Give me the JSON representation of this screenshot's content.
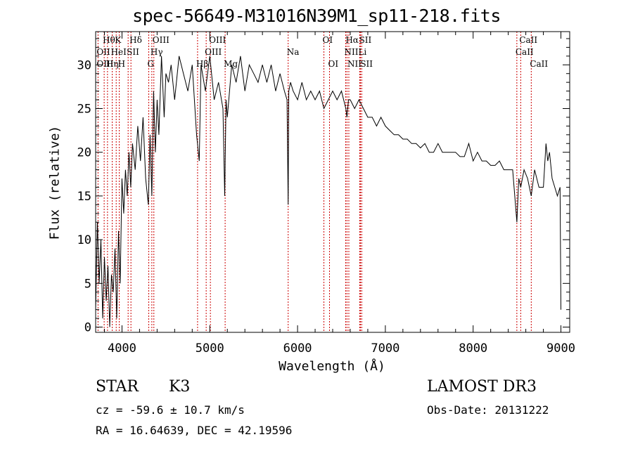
{
  "title": "spec-56649-M31016N39M1_sp11-218.fits",
  "info": {
    "object_class": "STAR",
    "subclass": "K3",
    "survey": "LAMOST DR3",
    "cz": "cz = -59.6 ± 10.7 km/s",
    "obs_date": "Obs-Date: 20131222",
    "coords": "RA =  16.64639, DEC =  42.19596"
  },
  "chart_data": {
    "type": "line",
    "title": "spec-56649-M31016N39M1_sp11-218.fits",
    "xlabel": "Wavelength (Å)",
    "ylabel": "Flux (relative)",
    "xlim": [
      3700,
      9100
    ],
    "ylim": [
      -0.6,
      33.8
    ],
    "xticks": [
      4000,
      5000,
      6000,
      7000,
      8000,
      9000
    ],
    "yticks": [
      0,
      5,
      10,
      15,
      20,
      25,
      30
    ],
    "series": [
      {
        "name": "flux",
        "x": [
          3700,
          3720,
          3740,
          3760,
          3780,
          3800,
          3820,
          3840,
          3860,
          3880,
          3900,
          3920,
          3940,
          3960,
          3980,
          4000,
          4020,
          4040,
          4060,
          4080,
          4100,
          4120,
          4150,
          4180,
          4210,
          4240,
          4270,
          4300,
          4320,
          4340,
          4360,
          4380,
          4400,
          4420,
          4450,
          4480,
          4500,
          4530,
          4560,
          4600,
          4650,
          4700,
          4750,
          4800,
          4850,
          4880,
          4900,
          4950,
          5000,
          5050,
          5100,
          5150,
          5170,
          5185,
          5200,
          5250,
          5300,
          5350,
          5400,
          5450,
          5500,
          5550,
          5600,
          5650,
          5700,
          5750,
          5800,
          5850,
          5880,
          5893,
          5900,
          5920,
          5950,
          6000,
          6050,
          6100,
          6150,
          6200,
          6250,
          6300,
          6350,
          6400,
          6450,
          6500,
          6550,
          6563,
          6580,
          6600,
          6650,
          6700,
          6750,
          6800,
          6850,
          6900,
          6950,
          7000,
          7050,
          7100,
          7150,
          7200,
          7250,
          7300,
          7350,
          7400,
          7450,
          7500,
          7550,
          7600,
          7650,
          7700,
          7750,
          7800,
          7850,
          7900,
          7950,
          8000,
          8050,
          8100,
          8150,
          8200,
          8250,
          8300,
          8350,
          8400,
          8450,
          8498,
          8520,
          8542,
          8580,
          8620,
          8662,
          8700,
          8750,
          8800,
          8830,
          8850,
          8870,
          8900,
          8930,
          8960,
          8990,
          9000
        ],
        "y": [
          2,
          12,
          5,
          10,
          1,
          8,
          3,
          7,
          0,
          6,
          4,
          9,
          1,
          11,
          5,
          17,
          13,
          18,
          15,
          20,
          16,
          21,
          18,
          23,
          19,
          24,
          17,
          14,
          22,
          15,
          27,
          20,
          26,
          22,
          31,
          24,
          29,
          28,
          30,
          26,
          31,
          29,
          27,
          30,
          22,
          19,
          30,
          27,
          31,
          26,
          28,
          25,
          15,
          26,
          24,
          30,
          28,
          31,
          27,
          30,
          29,
          28,
          30,
          28,
          30,
          27,
          29,
          27,
          26,
          14,
          27,
          28,
          27,
          26,
          28,
          26,
          27,
          26,
          27,
          25,
          26,
          27,
          26,
          27,
          25,
          24,
          26,
          26,
          25,
          26,
          25,
          24,
          24,
          23,
          24,
          23,
          22.5,
          22,
          22,
          21.5,
          21.5,
          21,
          21,
          20.5,
          21,
          20,
          20,
          21,
          20,
          20,
          20,
          20,
          19.5,
          19.5,
          21,
          19,
          20,
          19,
          19,
          18.5,
          18.5,
          19,
          18,
          18,
          18,
          12,
          17,
          16,
          18,
          17,
          15,
          18,
          16,
          16,
          21,
          19,
          20,
          17,
          16,
          15,
          16,
          2
        ]
      }
    ],
    "lines": [
      {
        "label": "Hθ",
        "x": 3797,
        "row": 1
      },
      {
        "label": "OII",
        "x": 3727,
        "row": 2
      },
      {
        "label": "OIII",
        "x": 3727,
        "row": 3
      },
      {
        "label": "K",
        "x": 3934,
        "row": 1
      },
      {
        "label": "HeI",
        "x": 3889,
        "row": 2
      },
      {
        "label": "Hη",
        "x": 3835,
        "row": 3
      },
      {
        "label": "H",
        "x": 3969,
        "row": 3
      },
      {
        "label": "Hδ",
        "x": 4102,
        "row": 1
      },
      {
        "label": "SII",
        "x": 4070,
        "row": 2
      },
      {
        "label": "OIII",
        "x": 4363,
        "row": 1
      },
      {
        "label": "Hγ",
        "x": 4340,
        "row": 2
      },
      {
        "label": "G",
        "x": 4305,
        "row": 3
      },
      {
        "label": "OIII",
        "x": 5007,
        "row": 1
      },
      {
        "label": "OIII",
        "x": 4959,
        "row": 2
      },
      {
        "label": "Hβ",
        "x": 4861,
        "row": 3
      },
      {
        "label": "Mg",
        "x": 5175,
        "row": 3
      },
      {
        "label": "Na",
        "x": 5893,
        "row": 2
      },
      {
        "label": "OI",
        "x": 6300,
        "row": 1
      },
      {
        "label": "OI",
        "x": 6364,
        "row": 3
      },
      {
        "label": "Hα",
        "x": 6563,
        "row": 1
      },
      {
        "label": "NII",
        "x": 6548,
        "row": 2
      },
      {
        "label": "NII",
        "x": 6584,
        "row": 3
      },
      {
        "label": "SII",
        "x": 6717,
        "row": 1
      },
      {
        "label": "Li",
        "x": 6708,
        "row": 2
      },
      {
        "label": "SII",
        "x": 6731,
        "row": 3
      },
      {
        "label": "CaII",
        "x": 8542,
        "row": 1
      },
      {
        "label": "CaII",
        "x": 8498,
        "row": 2
      },
      {
        "label": "CaII",
        "x": 8662,
        "row": 3
      }
    ]
  }
}
